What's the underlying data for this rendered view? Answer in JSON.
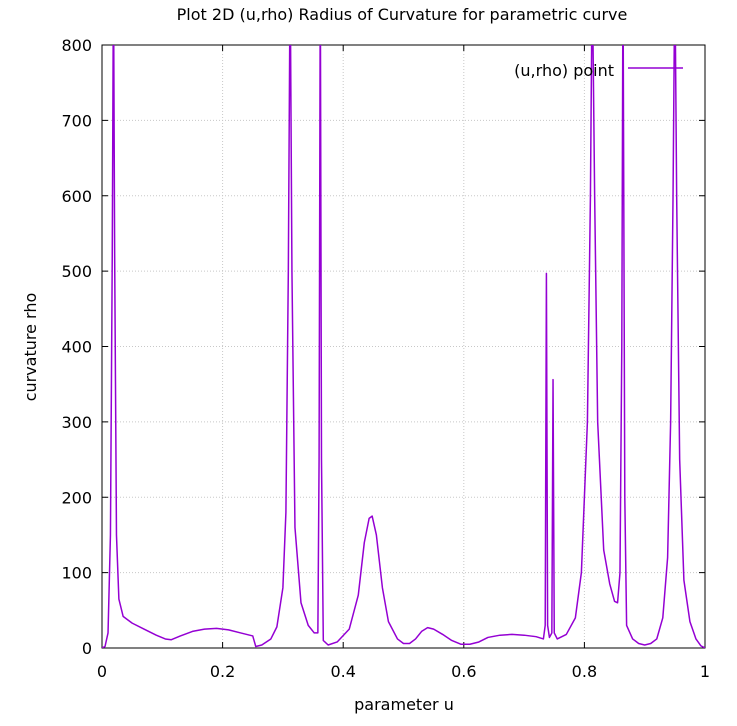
{
  "chart_data": {
    "type": "line",
    "title": "Plot 2D (u,rho) Radius of Curvature for parametric curve",
    "xlabel": "parameter u",
    "ylabel": "curvature rho",
    "xlim": [
      0,
      1
    ],
    "ylim": [
      0,
      800
    ],
    "x_ticks": [
      "0",
      "0.2",
      "0.4",
      "0.6",
      "0.8",
      "1"
    ],
    "y_ticks": [
      "0",
      "100",
      "200",
      "300",
      "400",
      "500",
      "600",
      "700",
      "800"
    ],
    "grid": true,
    "legend_position": "top-right",
    "series": [
      {
        "name": "(u,rho) point",
        "color": "#9400d3",
        "points": [
          [
            0.0,
            0
          ],
          [
            0.005,
            2
          ],
          [
            0.01,
            20
          ],
          [
            0.014,
            150
          ],
          [
            0.017,
            520
          ],
          [
            0.019,
            900
          ],
          [
            0.021,
            520
          ],
          [
            0.024,
            150
          ],
          [
            0.028,
            65
          ],
          [
            0.035,
            42
          ],
          [
            0.05,
            33
          ],
          [
            0.07,
            25
          ],
          [
            0.09,
            17
          ],
          [
            0.105,
            12
          ],
          [
            0.115,
            11
          ],
          [
            0.13,
            16
          ],
          [
            0.15,
            22
          ],
          [
            0.17,
            25
          ],
          [
            0.19,
            26
          ],
          [
            0.21,
            24
          ],
          [
            0.23,
            20
          ],
          [
            0.245,
            17
          ],
          [
            0.25,
            16
          ],
          [
            0.255,
            2
          ],
          [
            0.265,
            4
          ],
          [
            0.28,
            12
          ],
          [
            0.29,
            28
          ],
          [
            0.3,
            80
          ],
          [
            0.305,
            180
          ],
          [
            0.309,
            500
          ],
          [
            0.312,
            900
          ],
          [
            0.315,
            500
          ],
          [
            0.32,
            160
          ],
          [
            0.33,
            60
          ],
          [
            0.342,
            30
          ],
          [
            0.352,
            20
          ],
          [
            0.358,
            20
          ],
          [
            0.36,
            250
          ],
          [
            0.362,
            900
          ],
          [
            0.364,
            250
          ],
          [
            0.367,
            10
          ],
          [
            0.375,
            4
          ],
          [
            0.39,
            8
          ],
          [
            0.41,
            25
          ],
          [
            0.425,
            70
          ],
          [
            0.435,
            140
          ],
          [
            0.443,
            172
          ],
          [
            0.448,
            175
          ],
          [
            0.455,
            150
          ],
          [
            0.465,
            80
          ],
          [
            0.475,
            35
          ],
          [
            0.49,
            12
          ],
          [
            0.5,
            6
          ],
          [
            0.51,
            6
          ],
          [
            0.52,
            12
          ],
          [
            0.53,
            22
          ],
          [
            0.54,
            27
          ],
          [
            0.55,
            25
          ],
          [
            0.565,
            18
          ],
          [
            0.58,
            10
          ],
          [
            0.595,
            5
          ],
          [
            0.61,
            5
          ],
          [
            0.625,
            8
          ],
          [
            0.64,
            14
          ],
          [
            0.66,
            17
          ],
          [
            0.68,
            18
          ],
          [
            0.7,
            17
          ],
          [
            0.72,
            15
          ],
          [
            0.732,
            12
          ],
          [
            0.735,
            30
          ],
          [
            0.737,
            497
          ],
          [
            0.739,
            30
          ],
          [
            0.742,
            14
          ],
          [
            0.746,
            20
          ],
          [
            0.748,
            356
          ],
          [
            0.75,
            20
          ],
          [
            0.755,
            12
          ],
          [
            0.77,
            18
          ],
          [
            0.785,
            40
          ],
          [
            0.795,
            100
          ],
          [
            0.805,
            300
          ],
          [
            0.81,
            600
          ],
          [
            0.813,
            900
          ],
          [
            0.817,
            600
          ],
          [
            0.822,
            300
          ],
          [
            0.832,
            130
          ],
          [
            0.842,
            85
          ],
          [
            0.85,
            62
          ],
          [
            0.855,
            60
          ],
          [
            0.859,
            100
          ],
          [
            0.862,
            400
          ],
          [
            0.864,
            900
          ],
          [
            0.867,
            200
          ],
          [
            0.87,
            30
          ],
          [
            0.88,
            12
          ],
          [
            0.89,
            6
          ],
          [
            0.9,
            4
          ],
          [
            0.91,
            6
          ],
          [
            0.92,
            12
          ],
          [
            0.93,
            40
          ],
          [
            0.938,
            120
          ],
          [
            0.943,
            300
          ],
          [
            0.947,
            600
          ],
          [
            0.95,
            900
          ],
          [
            0.953,
            600
          ],
          [
            0.958,
            250
          ],
          [
            0.965,
            90
          ],
          [
            0.975,
            35
          ],
          [
            0.985,
            12
          ],
          [
            0.993,
            3
          ],
          [
            1.0,
            0
          ]
        ]
      }
    ]
  }
}
